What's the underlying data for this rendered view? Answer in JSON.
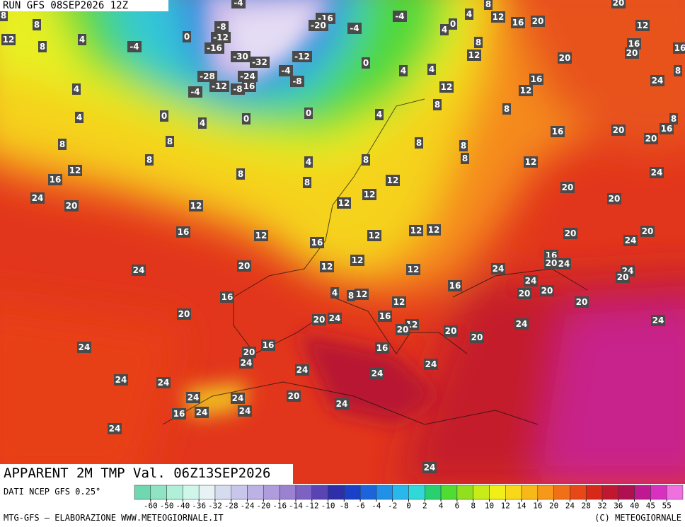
{
  "header": {
    "run": "RUN GFS 08SEP2026 12Z",
    "title": "APPARENT 2M TMP Val. 06Z13SEP2026"
  },
  "footer": {
    "source": "DATI NCEP GFS 0.25°",
    "credit": "MTG-GFS — ELABORAZIONE WWW.METEOGIORNALE.IT",
    "copyright": "(C) METEOGIORNALE"
  },
  "colorbar": {
    "ticks": [
      -60,
      -50,
      -40,
      -36,
      -32,
      -28,
      -24,
      -20,
      -16,
      -14,
      -12,
      -10,
      -8,
      -6,
      -4,
      -2,
      0,
      2,
      4,
      6,
      8,
      10,
      12,
      14,
      16,
      20,
      24,
      28,
      32,
      36,
      40,
      45,
      55
    ],
    "colors": [
      "#6fd8b0",
      "#8fe4c4",
      "#b0efd8",
      "#d0f6ea",
      "#e6f2f4",
      "#d6dcf0",
      "#c8c6ea",
      "#bcb2e4",
      "#ae9cdc",
      "#9a82d0",
      "#7c62c2",
      "#5a44b4",
      "#2e2ea8",
      "#1a40c8",
      "#1c64dc",
      "#2090e8",
      "#28b8ec",
      "#30d8d8",
      "#28d070",
      "#50dc30",
      "#90e020",
      "#c8ec18",
      "#f0f018",
      "#f8d818",
      "#f8b818",
      "#f89818",
      "#f07018",
      "#e84818",
      "#d82818",
      "#c01830",
      "#b01050",
      "#c01890",
      "#d830c0",
      "#f070e0"
    ]
  },
  "map_labels": [
    8,
    8,
    12,
    8,
    4,
    -4,
    0,
    -8,
    -12,
    -16,
    -4,
    -16,
    -20,
    -4,
    -4,
    4,
    0,
    4,
    12,
    16,
    20,
    8,
    20,
    12,
    16,
    20,
    16,
    12,
    8,
    0,
    4,
    4,
    20,
    16,
    12,
    12,
    24,
    8,
    -30,
    -32,
    -12,
    -4,
    -8,
    -28,
    -24,
    -12,
    -8,
    16,
    -4,
    4,
    4,
    0,
    4,
    0,
    0,
    4,
    8,
    8,
    16,
    20,
    16,
    20,
    8,
    8,
    8,
    8,
    8,
    8,
    8,
    12,
    4,
    8,
    16,
    12,
    8,
    8,
    12,
    24,
    24,
    20,
    12,
    12,
    20,
    20,
    12,
    16,
    12,
    16,
    12,
    12,
    12,
    20,
    20,
    24,
    24,
    20,
    12,
    12,
    12,
    24,
    16,
    20,
    24,
    24,
    20,
    24,
    16,
    20,
    20,
    16,
    4,
    8,
    12,
    12,
    20,
    20,
    20,
    24,
    16,
    12,
    20,
    20,
    20,
    24,
    24,
    24,
    16,
    20,
    24,
    16,
    24,
    24,
    24,
    24,
    24,
    24,
    24,
    20,
    24,
    16,
    24,
    24,
    24,
    24,
    24
  ]
}
